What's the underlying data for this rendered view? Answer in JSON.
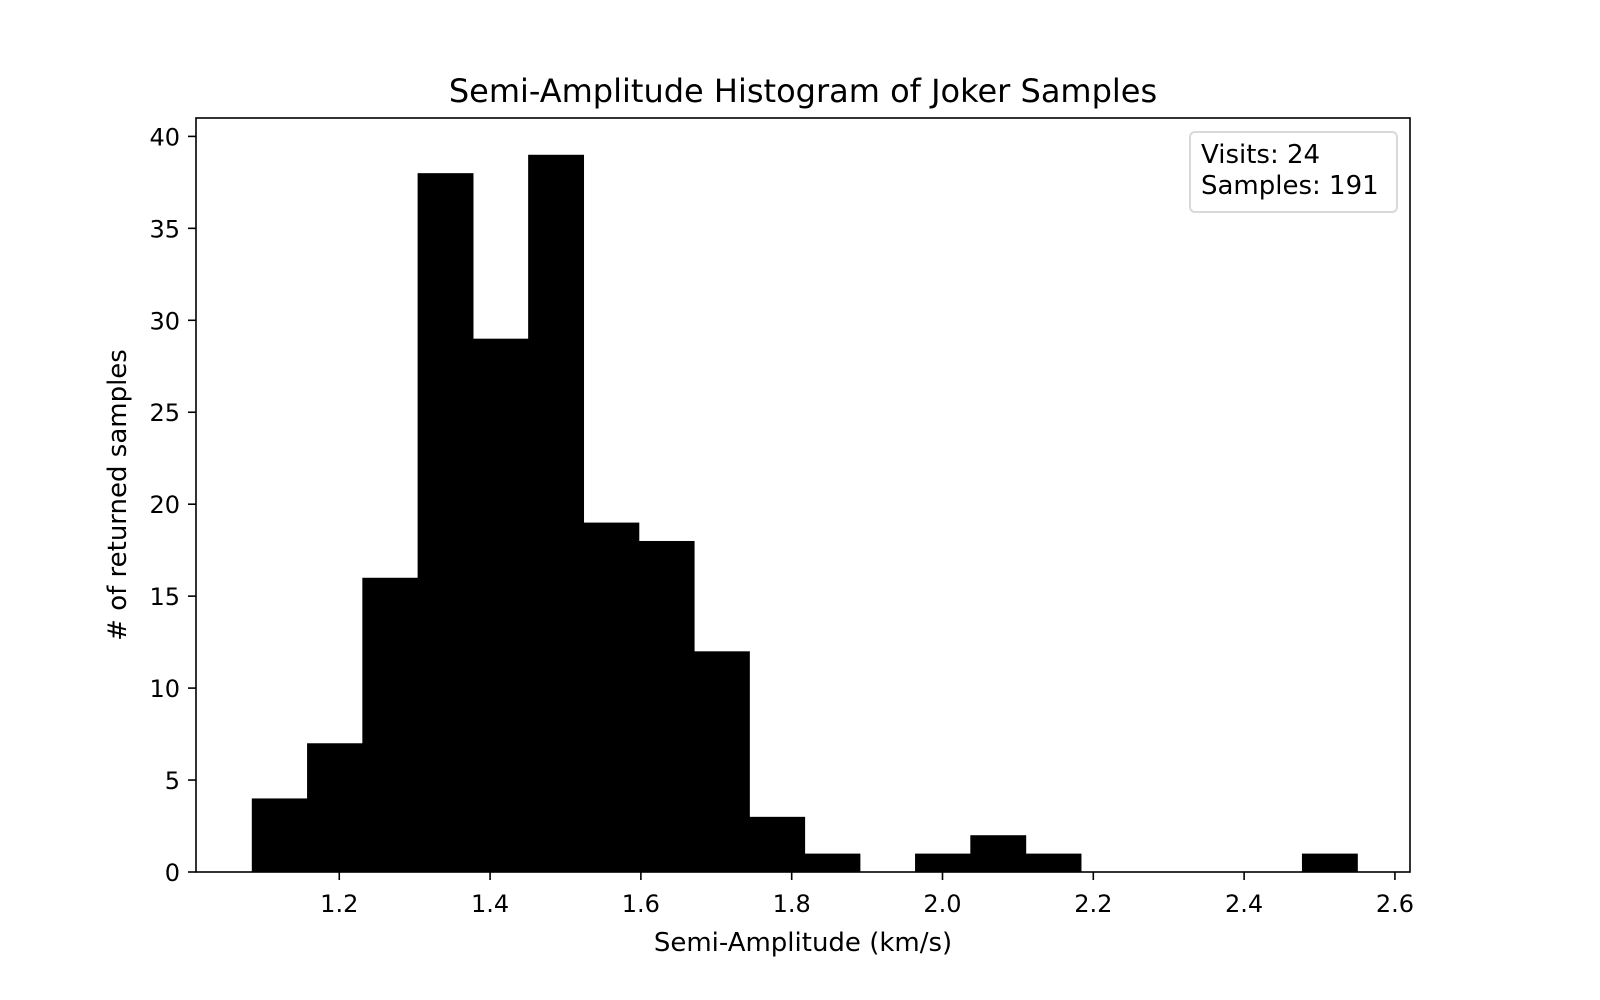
{
  "chart_data": {
    "type": "bar",
    "title": "Semi-Amplitude Histogram of Joker Samples",
    "xlabel": "Semi-Amplitude (km/s)",
    "ylabel": "# of returned samples",
    "xlim": [
      1.01,
      2.62
    ],
    "ylim": [
      0,
      41
    ],
    "xticks": [
      "1.2",
      "1.4",
      "1.6",
      "1.8",
      "2.0",
      "2.2",
      "2.4",
      "2.6"
    ],
    "yticks": [
      "0",
      "5",
      "10",
      "15",
      "20",
      "25",
      "30",
      "35",
      "40"
    ],
    "bin_edges": [
      1.084,
      1.1573,
      1.2306,
      1.3039,
      1.3772,
      1.4505,
      1.5238,
      1.5971,
      1.6704,
      1.7437,
      1.817,
      1.8903,
      1.9636,
      2.0369,
      2.1102,
      2.1835,
      2.2568,
      2.3301,
      2.4034,
      2.4767,
      2.55
    ],
    "counts": [
      4,
      7,
      16,
      38,
      29,
      39,
      19,
      18,
      12,
      3,
      1,
      0,
      1,
      2,
      1,
      0,
      0,
      0,
      0,
      1
    ],
    "bar_color": "#000000",
    "grid": false,
    "legend_placement": "top-right",
    "legend_lines": [
      "Visits: 24",
      "Samples: 191"
    ]
  }
}
